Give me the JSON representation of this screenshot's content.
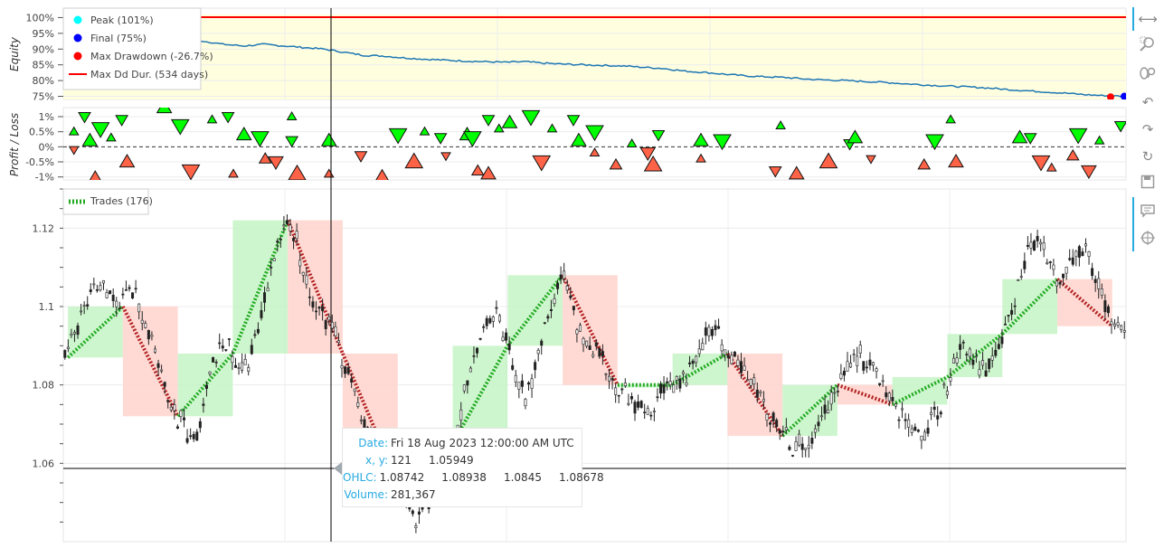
{
  "equity_panel": {
    "ylabel": "Equity",
    "yticks": [
      "100%",
      "95%",
      "90%",
      "85%",
      "80%",
      "75%"
    ],
    "legend": [
      {
        "label": "Peak (101%)",
        "color": "#00ffff",
        "kind": "dot"
      },
      {
        "label": "Final (75%)",
        "color": "#0000ff",
        "kind": "dot"
      },
      {
        "label": "Max Drawdown (-26.7%)",
        "color": "#ff0000",
        "kind": "dot"
      },
      {
        "label": "Max Dd Dur. (534 days)",
        "color": "#ff0000",
        "kind": "line"
      }
    ]
  },
  "pl_panel": {
    "ylabel": "Profit / Loss",
    "yticks": [
      "1%",
      "0.5%",
      "0%",
      "-0.5%",
      "-1%"
    ]
  },
  "price_panel": {
    "yticks": [
      "1.12",
      "1.1",
      "1.08",
      "1.06"
    ],
    "legend": {
      "label": "Trades (176)"
    }
  },
  "tooltip": {
    "date_key": "Date:",
    "date_val": "Fri 18 Aug 2023 12:00:00 AM UTC",
    "xy_key": "x, y:",
    "xy_val": "121     1.05949",
    "ohlc_key": "OHLC:",
    "ohlc_val": "1.08742     1.08938     1.0845     1.08678",
    "volume_key": "Volume:",
    "volume_val": "281,367"
  },
  "toolbar": {
    "icons": [
      "xpan-icon",
      "box-zoom-icon",
      "wheel-zoom-icon",
      "undo-icon",
      "redo-icon",
      "reset-icon",
      "save-icon",
      "hover-icon",
      "crosshair-icon"
    ]
  },
  "colors": {
    "up": "#00ff00",
    "down": "#ff6347",
    "long_zone": "#c6f5c6",
    "short_zone": "#ffd3cc",
    "equity_line": "#1f77b4",
    "dd_fill": "#ffffe0"
  },
  "chart_data": [
    {
      "type": "line",
      "title": "",
      "ylabel": "Equity",
      "ylim": [
        0.74,
        1.03
      ],
      "series": [
        {
          "values": [
            1.01,
            1.0,
            0.99,
            0.975,
            0.96,
            0.95,
            0.935,
            0.925,
            0.915,
            0.91,
            0.915,
            0.91,
            0.905,
            0.9,
            0.89,
            0.88,
            0.878,
            0.872,
            0.868,
            0.865,
            0.862,
            0.86,
            0.858,
            0.86,
            0.855,
            0.852,
            0.85,
            0.848,
            0.846,
            0.842,
            0.838,
            0.83,
            0.826,
            0.82,
            0.815,
            0.812,
            0.81,
            0.805,
            0.802,
            0.8,
            0.797,
            0.794,
            0.79,
            0.786,
            0.783,
            0.78,
            0.777,
            0.772,
            0.768,
            0.764,
            0.76,
            0.755,
            0.752,
            0.75
          ]
        }
      ],
      "peak": 1.01,
      "final": 0.75,
      "max_drawdown_pct": -26.7,
      "max_dd_duration_days": 534,
      "grid": true,
      "legend_position": "top-left"
    },
    {
      "type": "scatter",
      "ylabel": "Profit / Loss",
      "ylim": [
        -1.1,
        1.3
      ],
      "winners": [
        [
          0.01,
          0.5
        ],
        [
          0.02,
          1.0
        ],
        [
          0.025,
          0.2
        ],
        [
          0.035,
          0.6
        ],
        [
          0.045,
          0.3
        ],
        [
          0.055,
          0.9
        ],
        [
          0.095,
          1.3
        ],
        [
          0.11,
          0.7
        ],
        [
          0.14,
          0.9
        ],
        [
          0.155,
          1.0
        ],
        [
          0.17,
          0.4
        ],
        [
          0.185,
          0.3
        ],
        [
          0.215,
          1.0
        ],
        [
          0.215,
          0.2
        ],
        [
          0.25,
          0.2
        ],
        [
          0.315,
          0.4
        ],
        [
          0.34,
          0.5
        ],
        [
          0.355,
          0.3
        ],
        [
          0.38,
          0.4
        ],
        [
          0.385,
          0.3
        ],
        [
          0.41,
          0.6
        ],
        [
          0.4,
          0.9
        ],
        [
          0.42,
          0.8
        ],
        [
          0.44,
          1.0
        ],
        [
          0.46,
          0.6
        ],
        [
          0.48,
          0.9
        ],
        [
          0.485,
          0.2
        ],
        [
          0.5,
          0.5
        ],
        [
          0.535,
          0.1
        ],
        [
          0.56,
          0.4
        ],
        [
          0.6,
          0.2
        ],
        [
          0.62,
          0.2
        ],
        [
          0.675,
          0.7
        ],
        [
          0.74,
          0.1
        ],
        [
          0.745,
          0.3
        ],
        [
          0.82,
          0.2
        ],
        [
          0.835,
          0.9
        ],
        [
          0.91,
          0.3
        ],
        [
          0.9,
          0.3
        ],
        [
          0.955,
          0.4
        ],
        [
          0.975,
          0.2
        ],
        [
          0.995,
          0.7
        ]
      ],
      "losers": [
        [
          0.01,
          -0.1
        ],
        [
          0.03,
          -1.0
        ],
        [
          0.06,
          -0.5
        ],
        [
          0.12,
          -0.8
        ],
        [
          0.16,
          -0.9
        ],
        [
          0.19,
          -0.4
        ],
        [
          0.2,
          -0.5
        ],
        [
          0.22,
          -0.9
        ],
        [
          0.25,
          -0.9
        ],
        [
          0.28,
          -0.3
        ],
        [
          0.3,
          -1.0
        ],
        [
          0.33,
          -0.5
        ],
        [
          0.36,
          -0.3
        ],
        [
          0.39,
          -0.8
        ],
        [
          0.4,
          -0.9
        ],
        [
          0.45,
          -0.5
        ],
        [
          0.5,
          -0.2
        ],
        [
          0.52,
          -0.6
        ],
        [
          0.55,
          -0.2
        ],
        [
          0.555,
          -0.6
        ],
        [
          0.6,
          -0.4
        ],
        [
          0.67,
          -0.8
        ],
        [
          0.69,
          -0.9
        ],
        [
          0.72,
          -0.5
        ],
        [
          0.76,
          -0.4
        ],
        [
          0.81,
          -0.6
        ],
        [
          0.84,
          -0.5
        ],
        [
          0.92,
          -0.5
        ],
        [
          0.93,
          -0.7
        ],
        [
          0.95,
          -0.3
        ],
        [
          0.965,
          -0.8
        ]
      ],
      "grid": true
    },
    {
      "type": "candlestick",
      "ylim": [
        1.04,
        1.13
      ],
      "series": [
        {
          "values": [
            1.087,
            1.093,
            1.1,
            1.103,
            1.105,
            1.103,
            1.1,
            1.105,
            1.1,
            1.095,
            1.085,
            1.078,
            1.072,
            1.07,
            1.065,
            1.075,
            1.085,
            1.09,
            1.088,
            1.085,
            1.087,
            1.095,
            1.105,
            1.115,
            1.122,
            1.118,
            1.108,
            1.1,
            1.098,
            1.095,
            1.088,
            1.08,
            1.073,
            1.068,
            1.063,
            1.058,
            1.055,
            1.05,
            1.045,
            1.048,
            1.052,
            1.058,
            1.065,
            1.073,
            1.085,
            1.092,
            1.097,
            1.098,
            1.09,
            1.08,
            1.077,
            1.085,
            1.093,
            1.1,
            1.108,
            1.102,
            1.092,
            1.09,
            1.087,
            1.083,
            1.08,
            1.077,
            1.075,
            1.072,
            1.075,
            1.078,
            1.08,
            1.082,
            1.085,
            1.09,
            1.095,
            1.092,
            1.088,
            1.085,
            1.082,
            1.078,
            1.075,
            1.07,
            1.067,
            1.065,
            1.064,
            1.066,
            1.07,
            1.075,
            1.08,
            1.086,
            1.088,
            1.085,
            1.083,
            1.08,
            1.075,
            1.072,
            1.07,
            1.068,
            1.07,
            1.075,
            1.082,
            1.088,
            1.09,
            1.085,
            1.083,
            1.087,
            1.093,
            1.1,
            1.11,
            1.118,
            1.115,
            1.11,
            1.107,
            1.112,
            1.116,
            1.114,
            1.105,
            1.1,
            1.095,
            1.093
          ]
        }
      ],
      "legend": "Trades (176)",
      "grid": true
    }
  ]
}
